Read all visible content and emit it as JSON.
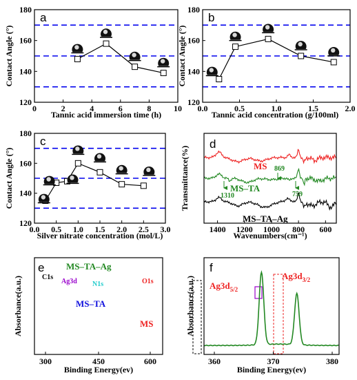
{
  "chart_data": [
    {
      "panel": "a",
      "type": "line",
      "xlabel": "Tannic acid immersion time (h)",
      "ylabel": "Contact Angle (°)",
      "xlim": [
        0,
        10
      ],
      "ylim": [
        120,
        180
      ],
      "xticks": [
        "0",
        "2",
        "4",
        "6",
        "8",
        "10"
      ],
      "yticks": [
        "120",
        "140",
        "160",
        "180"
      ],
      "hlines": [
        130,
        150,
        170
      ],
      "x": [
        3,
        5,
        7,
        9
      ],
      "y": [
        148,
        158,
        143,
        139
      ],
      "line_color": "#000000",
      "ref_color": "#0000ee"
    },
    {
      "panel": "b",
      "type": "line",
      "xlabel": "Tannic acid concentration (g/100ml)",
      "ylabel": "Contact Angle (°)",
      "xlim": [
        0,
        2.25
      ],
      "ylim": [
        120,
        180
      ],
      "xticks": [
        "0.0",
        "0.5",
        "1.0",
        "1.5",
        "2.0"
      ],
      "yticks": [
        "120",
        "140",
        "160",
        "180"
      ],
      "hlines": [
        130,
        150,
        170
      ],
      "x": [
        0.25,
        0.5,
        1.0,
        1.5,
        2.0
      ],
      "y": [
        135,
        156,
        161,
        150,
        146
      ],
      "line_color": "#000000",
      "ref_color": "#0000ee"
    },
    {
      "panel": "c",
      "type": "line",
      "xlabel": "Silver nitrate concentration (mol/L)",
      "ylabel": "Contact Angle (°)",
      "xlim": [
        0,
        3.0
      ],
      "ylim": [
        120,
        180
      ],
      "xticks": [
        "0.0",
        "0.5",
        "1.0",
        "1.5",
        "2.0",
        "2.5",
        "3.0"
      ],
      "yticks": [
        "120",
        "140",
        "160",
        "180"
      ],
      "hlines": [
        130,
        150,
        170
      ],
      "x": [
        0.25,
        0.5,
        0.75,
        1.0,
        1.5,
        2.0,
        2.5
      ],
      "y": [
        135,
        147,
        148,
        160,
        154,
        146,
        145
      ],
      "line_color": "#000000",
      "ref_color": "#0000ee"
    },
    {
      "panel": "d",
      "type": "line",
      "xlabel": "Wavenumbers(cm⁻¹)",
      "ylabel": "Transmittance(%)",
      "xticks": [
        "1400",
        "1200",
        "1000",
        "800",
        "600"
      ],
      "series": [
        {
          "name": "MS",
          "color": "#ee2222"
        },
        {
          "name": "MS–TA",
          "color": "#228822"
        },
        {
          "name": "MS–TA–Ag",
          "color": "#000000"
        }
      ],
      "annotations": [
        "869",
        "1310",
        "759"
      ]
    },
    {
      "panel": "e",
      "type": "line",
      "xlabel": "Binding Energy(ev)",
      "ylabel": "Absorbance(a.u.)",
      "xticks": [
        "300",
        "450",
        "600"
      ],
      "series": [
        {
          "name": "MS–TA–Ag",
          "color": "#228822"
        },
        {
          "name": "MS–TA",
          "color": "#1111dd"
        },
        {
          "name": "MS",
          "color": "#ee2222"
        }
      ],
      "annotations": [
        "C1s",
        "Ag3d",
        "N1s",
        "O1s"
      ]
    },
    {
      "panel": "f",
      "type": "line",
      "xlabel": "Binding Energy(ev)",
      "ylabel": "Absorbance(a.u.)",
      "xlim": [
        360,
        380
      ],
      "xticks": [
        "360",
        "370",
        "380"
      ],
      "series": [
        {
          "name": "",
          "color": "#228822"
        }
      ],
      "peaks": [
        368.0,
        374.0
      ],
      "annotations": [
        {
          "main": "Ag3d",
          "sub": "5/2"
        },
        {
          "main": "Ag3d",
          "sub": "3/2"
        }
      ]
    }
  ]
}
